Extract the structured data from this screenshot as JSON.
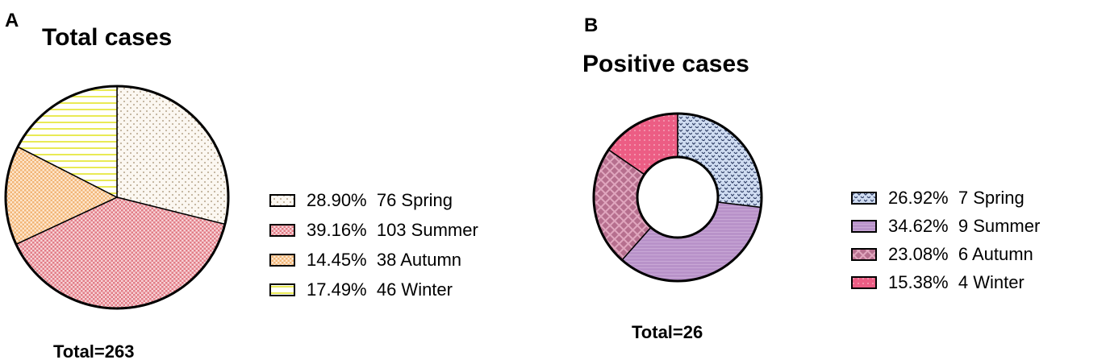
{
  "chart_data": [
    {
      "type": "pie",
      "panel": "A",
      "title": "Total cases",
      "total_label": "Total=263",
      "categories": [
        "Spring",
        "Summer",
        "Autumn",
        "Winter"
      ],
      "values": [
        76,
        103,
        38,
        46
      ],
      "legend_labels": [
        "28.90%  76 Spring",
        "39.16%  103 Summer",
        "14.45%  38 Autumn",
        "17.49%  46 Winter"
      ],
      "colors": [
        "#f6efe4",
        "#e9a0a8",
        "#f8cfa3",
        "#fafcc4"
      ],
      "legend": "right"
    },
    {
      "type": "pie",
      "donut": true,
      "panel": "B",
      "title": "Positive cases",
      "total_label": "Total=26",
      "categories": [
        "Spring",
        "Summer",
        "Autumn",
        "Winter"
      ],
      "values": [
        7,
        9,
        6,
        4
      ],
      "legend_labels": [
        "26.92%  7 Spring",
        "34.62%  9 Summer",
        "23.08%  6 Autumn",
        "15.38%  4 Winter"
      ],
      "colors": [
        "#bcd0ec",
        "#b892c9",
        "#c87b9b",
        "#ee6a8e"
      ],
      "legend": "right"
    }
  ]
}
